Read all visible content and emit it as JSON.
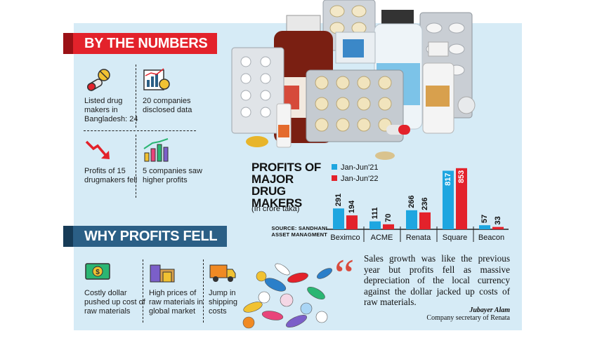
{
  "sections": {
    "numbers_title": "BY THE NUMBERS",
    "why_title": "WHY PROFITS FELL"
  },
  "by_the_numbers": [
    {
      "icon": "pills-icon",
      "text": "Listed drug makers in Bangladesh: 24"
    },
    {
      "icon": "data-report-icon",
      "text": "20 companies disclosed data"
    },
    {
      "icon": "downtrend-arrow-icon",
      "text": "Profits of 15 drugmakers fell"
    },
    {
      "icon": "uptrend-bars-icon",
      "text": "5 companies saw higher profits"
    }
  ],
  "why_profits_fell": [
    {
      "icon": "dollar-cash-icon",
      "text": "Costly dollar pushed up cost of raw materials"
    },
    {
      "icon": "warehouse-icon",
      "text": "High prices of raw materials in global market"
    },
    {
      "icon": "delivery-truck-icon",
      "text": "Jump in shipping costs"
    }
  ],
  "chart_data": {
    "type": "bar",
    "title": "PROFITS OF MAJOR DRUG MAKERS",
    "subtitle": "(In crore taka)",
    "source": "SOURCE: SANDHANI ASSET MANAGMENT",
    "categories": [
      "Beximco",
      "ACME",
      "Renata",
      "Square",
      "Beacon"
    ],
    "series": [
      {
        "name": "Jan-Jun'21",
        "color": "#1ea6e0",
        "values": [
          291,
          111,
          266,
          817,
          57
        ]
      },
      {
        "name": "Jan-Jun'22",
        "color": "#e3222b",
        "values": [
          194,
          70,
          236,
          853,
          33
        ]
      }
    ],
    "legend_position": "top-left",
    "grid": false,
    "ylim": [
      0,
      900
    ]
  },
  "quote": {
    "text": "Sales growth was like the previous year but profits fell as massive depreciation of the local currency against the dollar jacked up costs of raw materials.",
    "author": "Jubayer Alam",
    "role": "Company secretary of Renata"
  },
  "colors": {
    "panel": "#d6ebf6",
    "red_banner": "#e3222b",
    "blue_banner": "#2b5f86",
    "bar_2021": "#1ea6e0",
    "bar_2022": "#e3222b"
  }
}
